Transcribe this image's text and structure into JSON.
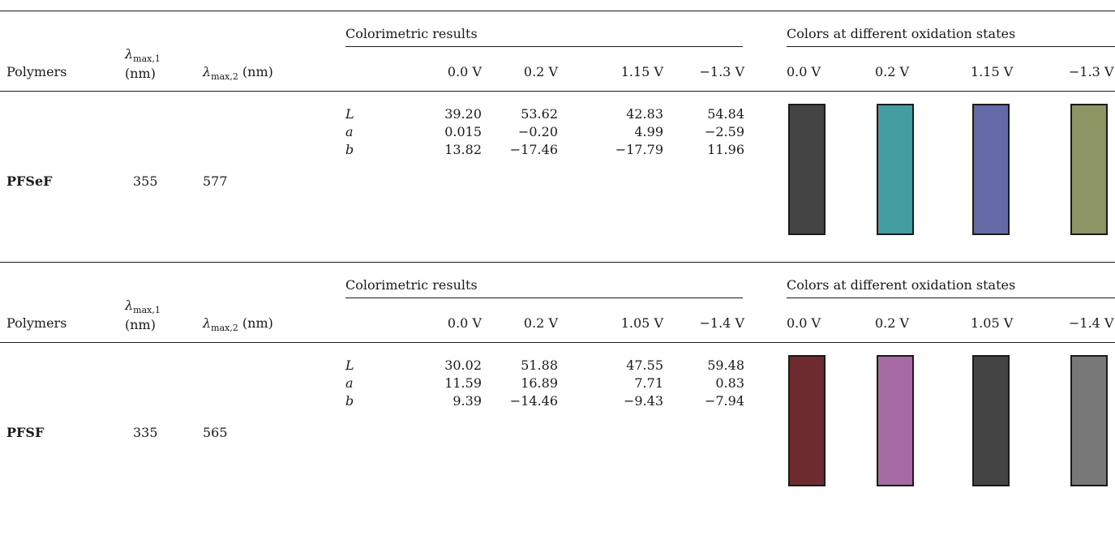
{
  "headers": {
    "polymers": "Polymers",
    "lambda_symbol": "λ",
    "lambda1_sub": "max,1",
    "lambda1_unit": "(nm)",
    "lambda2_sub": "max,2",
    "lambda2_unit": "(nm)",
    "colorimetric": "Colorimetric results",
    "colors": "Colors at different oxidation states"
  },
  "rows": [
    {
      "polymer": "PFSeF",
      "lambda1": "355",
      "lambda2": "577",
      "voltages": [
        "0.0 V",
        "0.2 V",
        "1.15 V",
        "−1.3 V"
      ],
      "params": [
        "L",
        "a",
        "b"
      ],
      "values": [
        [
          "39.20",
          "53.62",
          "42.83",
          "54.84"
        ],
        [
          "0.015",
          "−0.20",
          "4.99",
          "−2.59"
        ],
        [
          "13.82",
          "−17.46",
          "−17.79",
          "11.96"
        ]
      ],
      "swatch_colors": [
        "#444444",
        "#449ea1",
        "#636aa5",
        "#8e9565"
      ]
    },
    {
      "polymer": "PFSF",
      "lambda1": "335",
      "lambda2": "565",
      "voltages": [
        "0.0 V",
        "0.2 V",
        "1.05 V",
        "−1.4 V"
      ],
      "params": [
        "L",
        "a",
        "b"
      ],
      "values": [
        [
          "30.02",
          "51.88",
          "47.55",
          "59.48"
        ],
        [
          "11.59",
          "16.89",
          "7.71",
          "0.83"
        ],
        [
          "9.39",
          "−14.46",
          "−9.43",
          "−7.94"
        ]
      ],
      "swatch_colors": [
        "#6e2b30",
        "#a66aa4",
        "#444444",
        "#787878"
      ]
    }
  ]
}
